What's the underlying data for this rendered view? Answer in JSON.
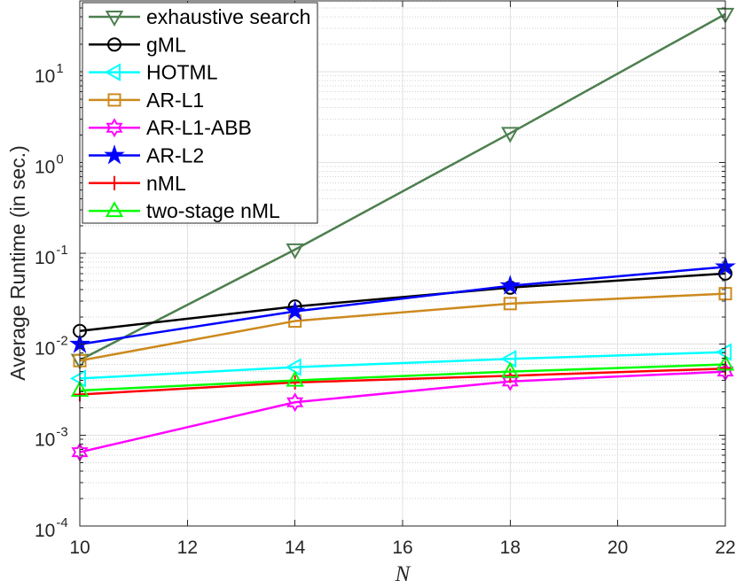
{
  "chart_data": {
    "type": "line",
    "yscale": "log",
    "xlabel": "N",
    "ylabel": "Average Runtime (in sec.)",
    "xlim": [
      10,
      22
    ],
    "ylim": [
      0.0001,
      60
    ],
    "xticks": [
      10,
      12,
      14,
      16,
      18,
      20,
      22
    ],
    "xtick_labels": [
      "10",
      "12",
      "14",
      "16",
      "18",
      "20",
      "22"
    ],
    "yticks": [
      0.0001,
      0.001,
      0.01,
      0.1,
      1,
      10
    ],
    "ytick_labels": [
      {
        "base": "10",
        "exp": "-4"
      },
      {
        "base": "10",
        "exp": "-3"
      },
      {
        "base": "10",
        "exp": "-2"
      },
      {
        "base": "10",
        "exp": "-1"
      },
      {
        "base": "10",
        "exp": "0"
      },
      {
        "base": "10",
        "exp": "1"
      }
    ],
    "grid": true,
    "minor_grid": true,
    "legend_position": "top-left",
    "x": [
      10,
      14,
      18,
      22
    ],
    "series": [
      {
        "name": "exhaustive search",
        "color": "#4d7f4f",
        "marker": "triangle-down",
        "filled": false,
        "values": [
          0.0067,
          0.11,
          2.1,
          43
        ]
      },
      {
        "name": "gML",
        "color": "#000000",
        "marker": "circle",
        "filled": false,
        "values": [
          0.014,
          0.026,
          0.042,
          0.06
        ]
      },
      {
        "name": "HOTML",
        "color": "#00ffff",
        "marker": "triangle-left",
        "filled": false,
        "values": [
          0.0042,
          0.0056,
          0.0069,
          0.0082
        ]
      },
      {
        "name": "AR-L1",
        "color": "#cc8a1e",
        "marker": "square",
        "filled": false,
        "values": [
          0.0066,
          0.018,
          0.028,
          0.036
        ]
      },
      {
        "name": "AR-L1-ABB",
        "color": "#ff00ff",
        "marker": "hexagram",
        "filled": false,
        "values": [
          0.00065,
          0.0023,
          0.0039,
          0.005
        ]
      },
      {
        "name": "AR-L2",
        "color": "#0000ff",
        "marker": "pentagram",
        "filled": true,
        "values": [
          0.01,
          0.023,
          0.044,
          0.071
        ]
      },
      {
        "name": "nML",
        "color": "#ff0000",
        "marker": "plus",
        "filled": false,
        "values": [
          0.0028,
          0.0038,
          0.0045,
          0.0054
        ]
      },
      {
        "name": "two-stage nML",
        "color": "#00ff00",
        "marker": "triangle-up",
        "filled": false,
        "values": [
          0.0031,
          0.004,
          0.005,
          0.006
        ]
      }
    ]
  }
}
